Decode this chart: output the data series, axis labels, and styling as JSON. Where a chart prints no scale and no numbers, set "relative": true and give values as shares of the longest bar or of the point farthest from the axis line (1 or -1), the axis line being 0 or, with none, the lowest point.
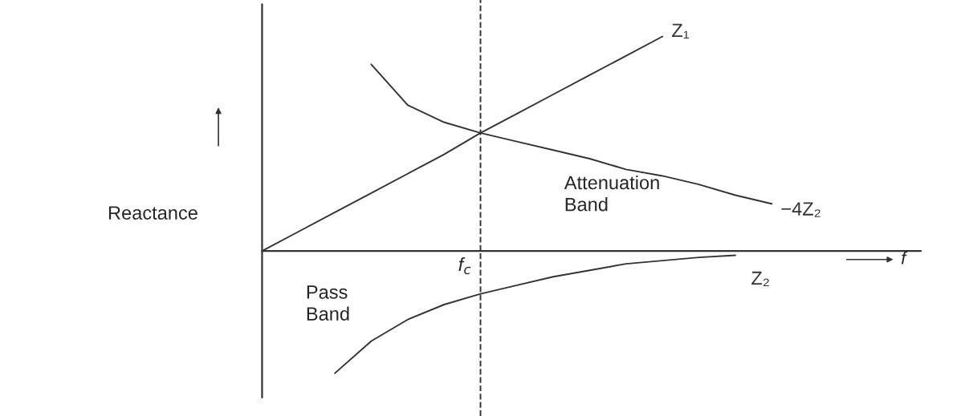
{
  "chart_data": {
    "type": "line",
    "relative": true,
    "categories": [
      null,
      null,
      null,
      null,
      null,
      null,
      null,
      null,
      null,
      null,
      null,
      null,
      null,
      null,
      null,
      null,
      null,
      null,
      null
    ],
    "series": [
      {
        "name": "Z₁",
        "color": "#333333",
        "values": [
          0,
          0.09,
          0.18,
          0.27,
          0.36,
          0.45,
          0.55,
          0.64,
          0.73,
          0.82,
          0.91,
          1.0,
          null,
          null,
          null,
          null,
          null,
          null,
          null
        ]
      },
      {
        "name": "−4Z₂",
        "color": "#333333",
        "values": [
          null,
          null,
          null,
          0.87,
          0.68,
          0.6,
          0.55,
          0.51,
          0.47,
          0.43,
          0.38,
          0.35,
          0.31,
          0.26,
          0.22,
          null,
          null,
          null,
          null
        ]
      },
      {
        "name": "Z₂",
        "color": "#333333",
        "values": [
          null,
          null,
          -0.57,
          -0.42,
          -0.32,
          -0.25,
          -0.2,
          -0.16,
          -0.12,
          -0.09,
          -0.06,
          -0.045,
          -0.03,
          -0.02,
          null,
          null,
          null,
          null,
          null
        ]
      }
    ],
    "xlabel": "f",
    "ylabel": "Reactance",
    "annotations": [
      "Pass\nBand",
      "Attenuation\nBand",
      "f$_{c}$"
    ],
    "line_style": "solid",
    "marker": "none"
  }
}
